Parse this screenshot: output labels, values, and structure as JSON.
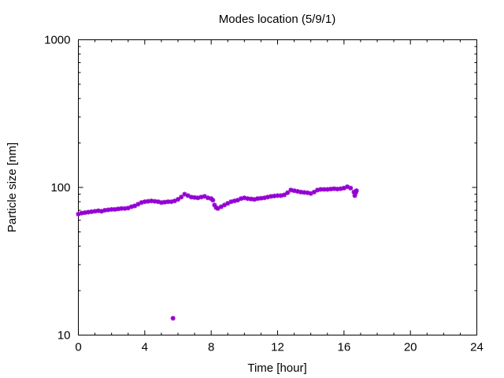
{
  "chart_data": {
    "type": "scatter",
    "title": "Modes location (5/9/1)",
    "xlabel": "Time [hour]",
    "ylabel": "Particle size [nm]",
    "xlim": [
      0,
      24
    ],
    "ylim": [
      10,
      1000
    ],
    "yscale": "log",
    "xticks": [
      0,
      4,
      8,
      12,
      16,
      20,
      24
    ],
    "xtick_labels": [
      "0",
      "4",
      "8",
      "12",
      "16",
      "20",
      "24"
    ],
    "yticks": [
      10,
      100,
      1000
    ],
    "ytick_labels": [
      "10",
      "100",
      "1000"
    ],
    "grid": false,
    "marker_color": "#9400D3",
    "series": [
      {
        "points": [
          [
            0.0,
            66
          ],
          [
            0.2,
            67
          ],
          [
            0.4,
            67.5
          ],
          [
            0.6,
            68
          ],
          [
            0.8,
            68.5
          ],
          [
            1.0,
            69
          ],
          [
            1.2,
            69.5
          ],
          [
            1.4,
            69
          ],
          [
            1.6,
            70
          ],
          [
            1.8,
            70.5
          ],
          [
            2.0,
            71
          ],
          [
            2.2,
            71
          ],
          [
            2.4,
            71.5
          ],
          [
            2.6,
            72
          ],
          [
            2.8,
            72
          ],
          [
            3.0,
            72.5
          ],
          [
            3.2,
            74
          ],
          [
            3.4,
            75
          ],
          [
            3.6,
            77
          ],
          [
            3.8,
            79
          ],
          [
            4.0,
            80
          ],
          [
            4.2,
            80.5
          ],
          [
            4.4,
            81
          ],
          [
            4.6,
            80.5
          ],
          [
            4.8,
            80
          ],
          [
            5.0,
            79
          ],
          [
            5.2,
            79.5
          ],
          [
            5.4,
            80
          ],
          [
            5.6,
            80
          ],
          [
            5.8,
            81
          ],
          [
            6.0,
            83
          ],
          [
            6.2,
            86
          ],
          [
            6.4,
            90
          ],
          [
            6.6,
            88
          ],
          [
            6.8,
            86
          ],
          [
            7.0,
            85.5
          ],
          [
            7.2,
            85
          ],
          [
            7.4,
            86
          ],
          [
            7.6,
            87
          ],
          [
            7.8,
            85
          ],
          [
            8.0,
            84
          ],
          [
            8.1,
            82
          ],
          [
            8.2,
            76
          ],
          [
            8.3,
            73
          ],
          [
            8.4,
            72
          ],
          [
            8.6,
            74
          ],
          [
            8.8,
            76
          ],
          [
            9.0,
            78
          ],
          [
            9.2,
            80
          ],
          [
            9.4,
            81
          ],
          [
            9.6,
            82
          ],
          [
            9.8,
            84
          ],
          [
            10.0,
            85
          ],
          [
            10.2,
            84
          ],
          [
            10.4,
            83.5
          ],
          [
            10.6,
            83
          ],
          [
            10.8,
            84
          ],
          [
            11.0,
            84.5
          ],
          [
            11.2,
            85
          ],
          [
            11.4,
            86
          ],
          [
            11.6,
            87
          ],
          [
            11.8,
            87.5
          ],
          [
            12.0,
            88
          ],
          [
            12.2,
            88
          ],
          [
            12.4,
            89
          ],
          [
            12.6,
            92
          ],
          [
            12.8,
            96
          ],
          [
            13.0,
            95
          ],
          [
            13.2,
            94
          ],
          [
            13.4,
            93
          ],
          [
            13.6,
            92.5
          ],
          [
            13.8,
            92
          ],
          [
            14.0,
            91
          ],
          [
            14.2,
            93
          ],
          [
            14.4,
            96
          ],
          [
            14.6,
            97
          ],
          [
            14.8,
            97
          ],
          [
            15.0,
            97
          ],
          [
            15.2,
            97.5
          ],
          [
            15.4,
            98
          ],
          [
            15.6,
            97.5
          ],
          [
            15.8,
            98
          ],
          [
            16.0,
            99
          ],
          [
            16.2,
            101
          ],
          [
            16.4,
            99
          ],
          [
            16.6,
            93
          ],
          [
            16.65,
            88
          ],
          [
            16.7,
            92
          ],
          [
            16.75,
            95
          ],
          [
            5.7,
            13
          ]
        ]
      }
    ]
  }
}
